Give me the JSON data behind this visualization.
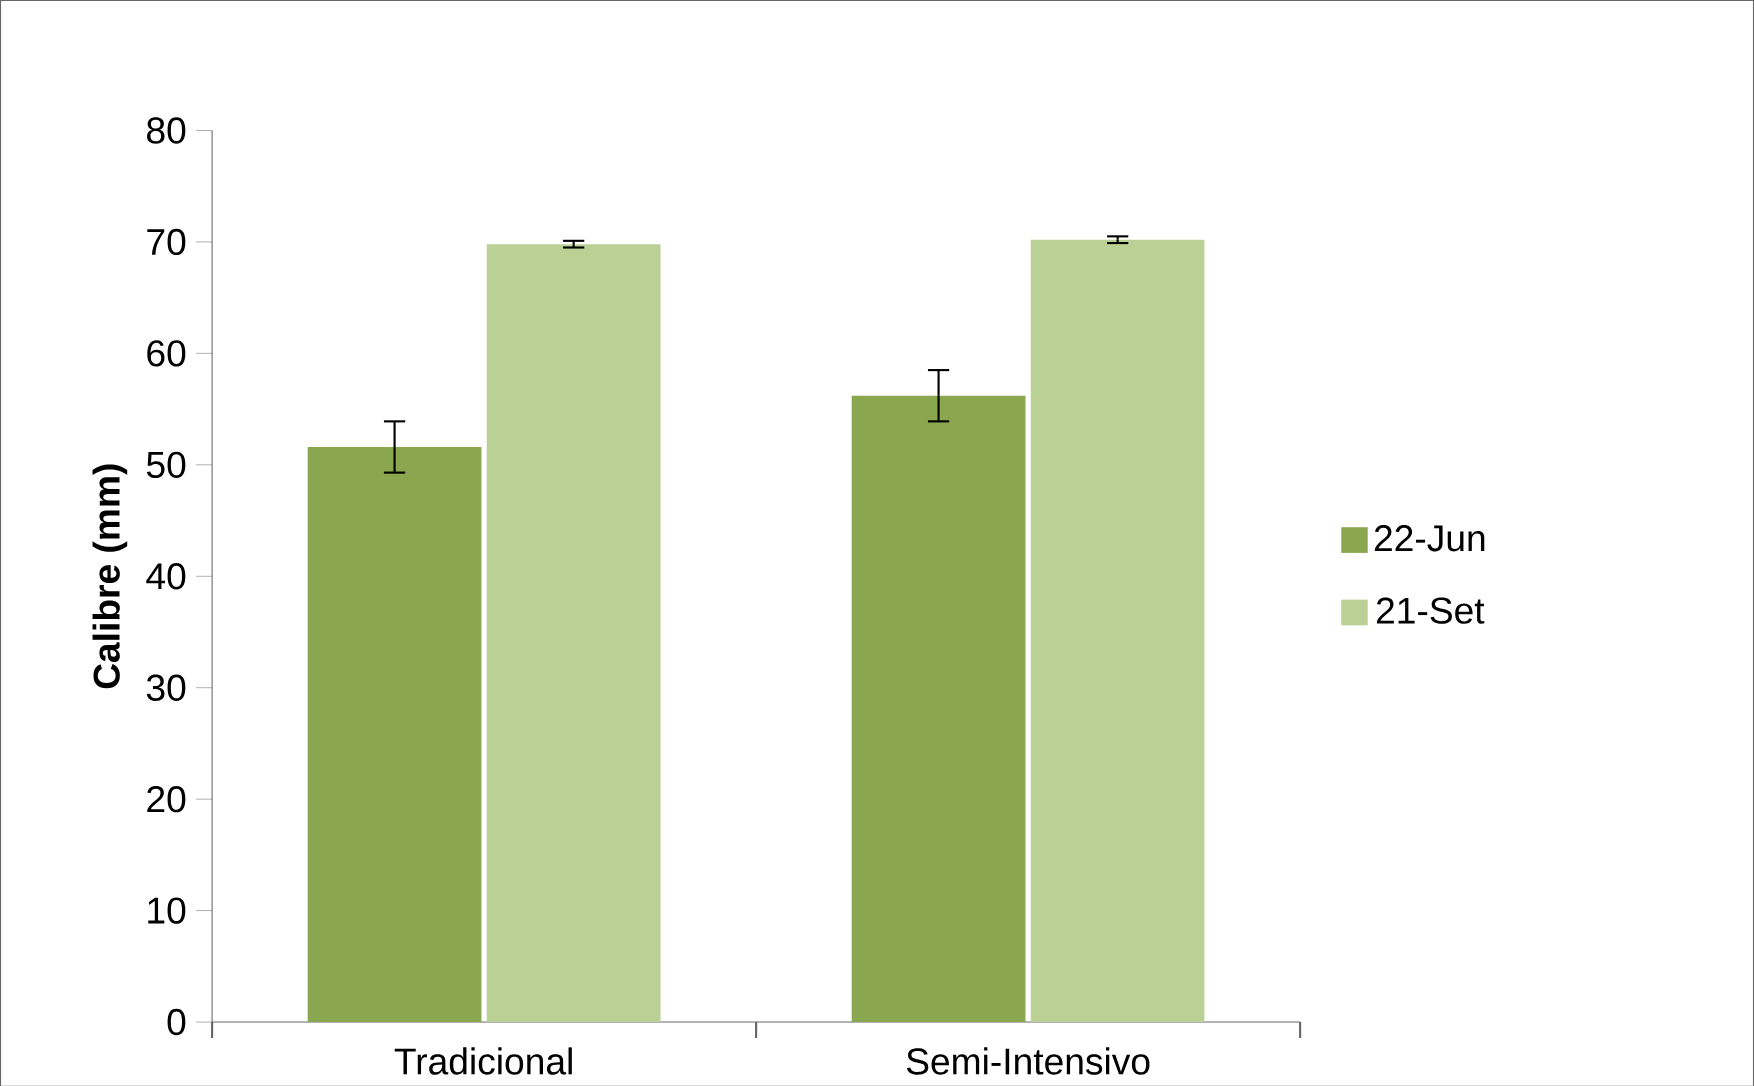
{
  "chart_data": {
    "type": "bar",
    "ylabel": "Calibre (mm)",
    "categories": [
      "Tradicional",
      "Semi-Intensivo"
    ],
    "series": [
      {
        "name": "22-Jun",
        "color": "#8aa64f",
        "values": [
          51.6,
          56.2
        ],
        "errors": [
          2.3,
          2.3
        ]
      },
      {
        "name": "21-Set",
        "color": "#bad095",
        "values": [
          69.8,
          70.2
        ],
        "errors": [
          0.3,
          0.3
        ]
      }
    ],
    "ylim": [
      0,
      80
    ],
    "yticks": [
      0,
      10,
      20,
      30,
      40,
      50,
      60,
      70,
      80
    ],
    "grid": false,
    "legend": "right"
  }
}
